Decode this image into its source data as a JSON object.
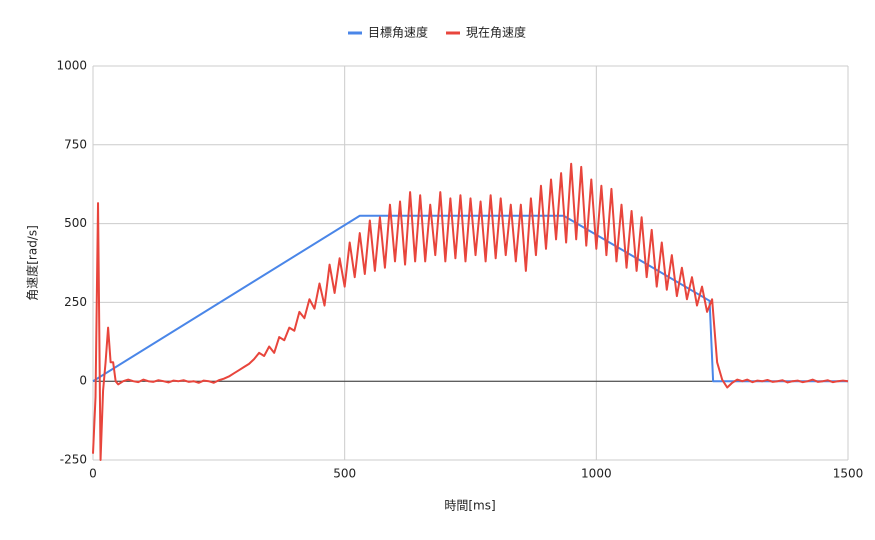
{
  "chart_data": {
    "type": "line",
    "xlabel": "時間[ms]",
    "ylabel": "角速度[rad/s]",
    "xlim": [
      0,
      1500
    ],
    "xticks": [
      0,
      500,
      1000,
      1500
    ],
    "ylim": [
      -250,
      1000
    ],
    "yticks": [
      -250,
      0,
      250,
      500,
      750,
      1000
    ],
    "grid": true,
    "legend": "top",
    "series": [
      {
        "name": "目標角速度",
        "color": "#4a86e8",
        "x": [
          0,
          530,
          935,
          1225,
          1232,
          1500
        ],
        "values": [
          0,
          525,
          525,
          255,
          0,
          0
        ]
      },
      {
        "name": "現在角速度",
        "color": "#e8453c",
        "x": [
          0,
          5,
          10,
          15,
          20,
          25,
          30,
          35,
          40,
          45,
          50,
          60,
          70,
          80,
          90,
          100,
          110,
          120,
          130,
          140,
          150,
          160,
          170,
          180,
          190,
          200,
          210,
          220,
          230,
          240,
          250,
          260,
          270,
          280,
          290,
          300,
          310,
          320,
          330,
          340,
          350,
          360,
          370,
          380,
          390,
          400,
          410,
          420,
          430,
          440,
          450,
          460,
          470,
          480,
          490,
          500,
          510,
          520,
          530,
          540,
          550,
          560,
          570,
          580,
          590,
          600,
          610,
          620,
          630,
          640,
          650,
          660,
          670,
          680,
          690,
          700,
          710,
          720,
          730,
          740,
          750,
          760,
          770,
          780,
          790,
          800,
          810,
          820,
          830,
          840,
          850,
          860,
          870,
          880,
          890,
          900,
          910,
          920,
          930,
          940,
          950,
          960,
          970,
          980,
          990,
          1000,
          1010,
          1020,
          1030,
          1040,
          1050,
          1060,
          1070,
          1080,
          1090,
          1100,
          1110,
          1120,
          1130,
          1140,
          1150,
          1160,
          1170,
          1180,
          1190,
          1200,
          1210,
          1220,
          1230,
          1240,
          1250,
          1260,
          1270,
          1280,
          1290,
          1300,
          1310,
          1320,
          1330,
          1340,
          1350,
          1360,
          1370,
          1380,
          1390,
          1400,
          1410,
          1420,
          1430,
          1440,
          1450,
          1460,
          1470,
          1480,
          1490,
          1500
        ],
        "values": [
          -230,
          -50,
          565,
          -250,
          -30,
          60,
          170,
          60,
          60,
          0,
          -10,
          0,
          5,
          0,
          -3,
          5,
          0,
          -2,
          3,
          0,
          -4,
          2,
          0,
          3,
          -2,
          0,
          -5,
          2,
          0,
          -5,
          3,
          8,
          15,
          25,
          35,
          45,
          55,
          70,
          90,
          80,
          110,
          90,
          140,
          130,
          170,
          160,
          220,
          200,
          260,
          230,
          310,
          240,
          370,
          280,
          390,
          300,
          440,
          330,
          470,
          340,
          510,
          350,
          520,
          360,
          560,
          380,
          570,
          370,
          600,
          380,
          590,
          380,
          560,
          400,
          600,
          380,
          580,
          390,
          590,
          380,
          580,
          400,
          570,
          380,
          590,
          390,
          580,
          400,
          560,
          380,
          560,
          350,
          580,
          400,
          620,
          420,
          640,
          450,
          660,
          440,
          690,
          450,
          680,
          430,
          640,
          420,
          620,
          400,
          610,
          380,
          560,
          360,
          540,
          350,
          520,
          330,
          480,
          300,
          440,
          290,
          400,
          270,
          360,
          260,
          330,
          240,
          300,
          220,
          260,
          60,
          5,
          -20,
          -5,
          5,
          0,
          5,
          -3,
          2,
          0,
          4,
          -2,
          0,
          3,
          -4,
          0,
          2,
          -3,
          0,
          5,
          -2,
          0,
          3,
          -3,
          0,
          2,
          0
        ]
      }
    ]
  }
}
